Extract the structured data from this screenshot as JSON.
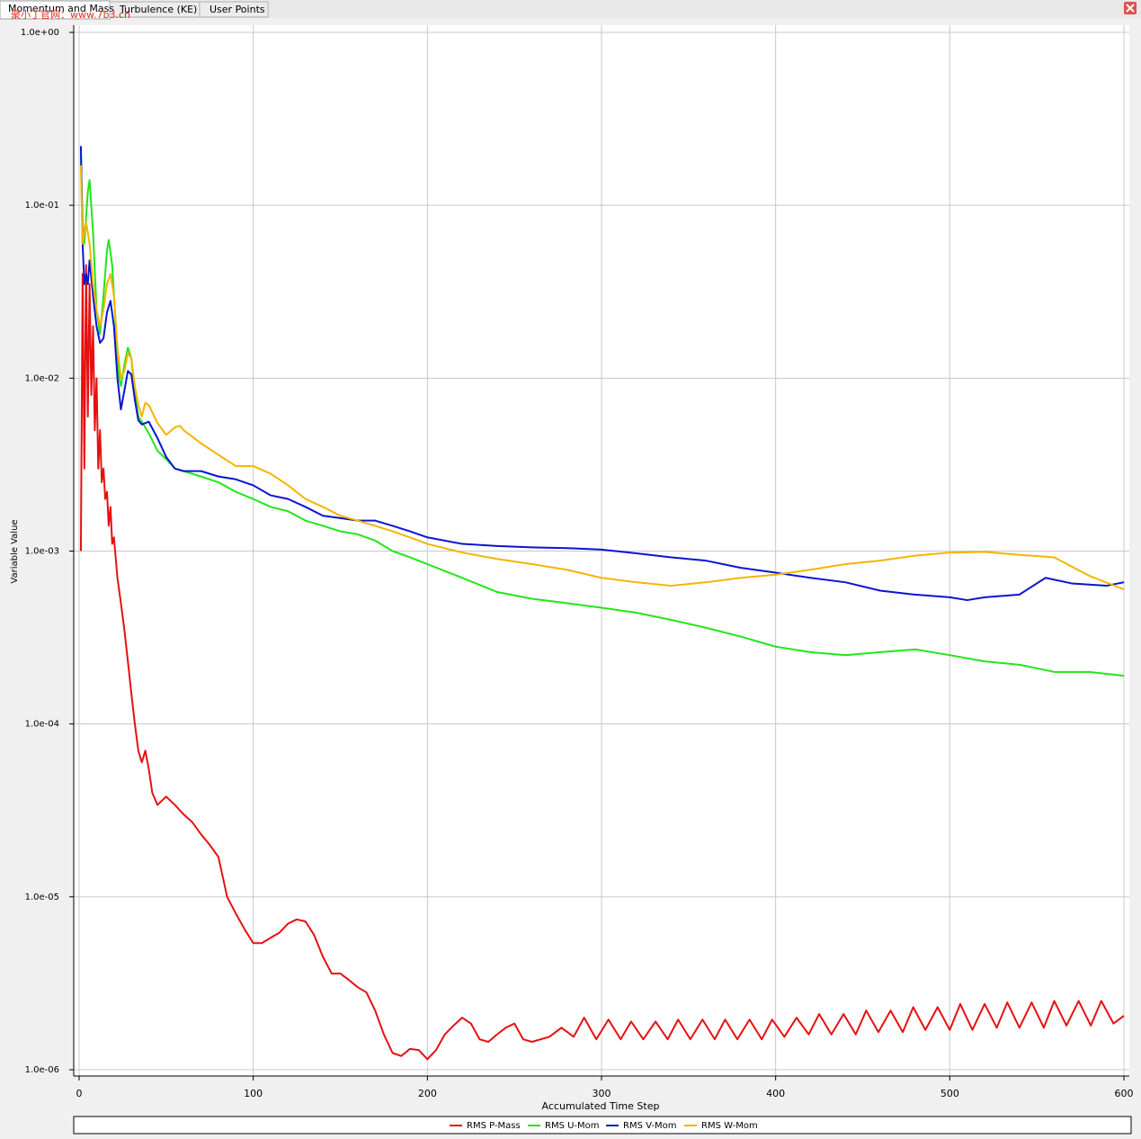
{
  "tabs": [
    "Momentum and Mass",
    "Turbulence (KE)",
    "User Points"
  ],
  "watermark": "聚小丁官网：www.7b3.cn",
  "chart_data": {
    "type": "line",
    "x_label": "Accumulated Time Step",
    "y_label": "Variable Value",
    "yscale": "log",
    "grid": true,
    "legend": "bottom",
    "xlim": [
      0,
      600
    ],
    "xticks": [
      0,
      100,
      200,
      300,
      400,
      500,
      600
    ],
    "ylim": [
      1e-06,
      1
    ],
    "yticks": [
      {
        "value": 1e-06,
        "label": "1.0e-06"
      },
      {
        "value": 1e-05,
        "label": "1.0e-05"
      },
      {
        "value": 0.0001,
        "label": "1.0e-04"
      },
      {
        "value": 0.001,
        "label": "1.0e-03"
      },
      {
        "value": 0.01,
        "label": "1.0e-02"
      },
      {
        "value": 0.1,
        "label": "1.0e-01"
      },
      {
        "value": 1,
        "label": "1.0e+00"
      }
    ],
    "series": [
      {
        "name": "RMS P-Mass",
        "color": "#e61010",
        "x": [
          1,
          2,
          3,
          4,
          5,
          6,
          7,
          8,
          9,
          10,
          11,
          12,
          13,
          14,
          15,
          16,
          17,
          18,
          19,
          20,
          22,
          24,
          26,
          28,
          30,
          32,
          34,
          36,
          38,
          40,
          42,
          45,
          50,
          55,
          60,
          65,
          70,
          75,
          80,
          85,
          90,
          95,
          100,
          105,
          110,
          115,
          120,
          125,
          130,
          135,
          140,
          145,
          150,
          155,
          160,
          165,
          170,
          175,
          180,
          185,
          190,
          195,
          200,
          205,
          210,
          215,
          220,
          225,
          230,
          235,
          240,
          245,
          250,
          255,
          260,
          270,
          277,
          284,
          290,
          297,
          304,
          311,
          317,
          324,
          331,
          338,
          344,
          351,
          358,
          365,
          371,
          378,
          385,
          392,
          398,
          405,
          412,
          419,
          425,
          432,
          439,
          446,
          452,
          459,
          466,
          473,
          479,
          486,
          493,
          500,
          506,
          513,
          520,
          527,
          533,
          540,
          547,
          554,
          560,
          567,
          574,
          581,
          587,
          594,
          600
        ],
        "values": [
          0.001,
          0.04,
          0.003,
          0.045,
          0.006,
          0.035,
          0.008,
          0.02,
          0.005,
          0.01,
          0.003,
          0.005,
          0.0025,
          0.003,
          0.002,
          0.0022,
          0.0014,
          0.0018,
          0.0011,
          0.0012,
          0.0007,
          0.0005,
          0.00035,
          0.00023,
          0.00015,
          0.0001,
          7e-05,
          6e-05,
          7e-05,
          5.5e-05,
          4e-05,
          3.4e-05,
          3.8e-05,
          3.4e-05,
          3e-05,
          2.7e-05,
          2.3e-05,
          2e-05,
          1.7e-05,
          1e-05,
          8e-06,
          6.5e-06,
          5.4e-06,
          5.4e-06,
          5.8e-06,
          6.2e-06,
          7e-06,
          7.4e-06,
          7.2e-06,
          6e-06,
          4.5e-06,
          3.6e-06,
          3.6e-06,
          3.3e-06,
          3e-06,
          2.8e-06,
          2.2e-06,
          1.6e-06,
          1.25e-06,
          1.2e-06,
          1.32e-06,
          1.3e-06,
          1.15e-06,
          1.3e-06,
          1.6e-06,
          1.8e-06,
          2e-06,
          1.85e-06,
          1.5e-06,
          1.45e-06,
          1.6e-06,
          1.75e-06,
          1.85e-06,
          1.5e-06,
          1.45e-06,
          1.55e-06,
          1.75e-06,
          1.55e-06,
          2e-06,
          1.5e-06,
          1.95e-06,
          1.5e-06,
          1.9e-06,
          1.5e-06,
          1.9e-06,
          1.5e-06,
          1.95e-06,
          1.5e-06,
          1.95e-06,
          1.5e-06,
          1.95e-06,
          1.5e-06,
          1.95e-06,
          1.5e-06,
          1.95e-06,
          1.55e-06,
          2e-06,
          1.6e-06,
          2.1e-06,
          1.6e-06,
          2.1e-06,
          1.6e-06,
          2.2e-06,
          1.65e-06,
          2.2e-06,
          1.65e-06,
          2.3e-06,
          1.7e-06,
          2.3e-06,
          1.7e-06,
          2.4e-06,
          1.7e-06,
          2.4e-06,
          1.75e-06,
          2.45e-06,
          1.75e-06,
          2.45e-06,
          1.75e-06,
          2.5e-06,
          1.8e-06,
          2.5e-06,
          1.8e-06,
          2.5e-06,
          1.85e-06,
          2.05e-06
        ]
      },
      {
        "name": "RMS U-Mom",
        "color": "#22e61a",
        "x": [
          1,
          2,
          3,
          5,
          6,
          8,
          10,
          12,
          14,
          16,
          17,
          19,
          21,
          23,
          24,
          26,
          28,
          30,
          32,
          34,
          38,
          40,
          45,
          50,
          55,
          60,
          70,
          80,
          90,
          100,
          110,
          120,
          130,
          140,
          150,
          160,
          170,
          180,
          190,
          200,
          220,
          240,
          260,
          280,
          300,
          320,
          340,
          360,
          380,
          400,
          420,
          440,
          460,
          480,
          500,
          520,
          540,
          560,
          580,
          600
        ],
        "values": [
          0.2,
          0.08,
          0.06,
          0.12,
          0.14,
          0.07,
          0.025,
          0.018,
          0.03,
          0.055,
          0.063,
          0.045,
          0.02,
          0.01,
          0.009,
          0.012,
          0.015,
          0.013,
          0.008,
          0.006,
          0.0052,
          0.0048,
          0.0038,
          0.0034,
          0.003,
          0.0029,
          0.0027,
          0.0025,
          0.0022,
          0.002,
          0.0018,
          0.0017,
          0.0015,
          0.0014,
          0.0013,
          0.00125,
          0.00115,
          0.001,
          0.00092,
          0.00084,
          0.0007,
          0.00058,
          0.00053,
          0.0005,
          0.00047,
          0.00044,
          0.0004,
          0.00036,
          0.00032,
          0.00028,
          0.00026,
          0.00025,
          0.00026,
          0.00027,
          0.00025,
          0.00023,
          0.00022,
          0.0002,
          0.0002,
          0.00019
        ]
      },
      {
        "name": "RMS V-Mom",
        "color": "#0a14d2",
        "x": [
          1,
          2,
          3,
          4,
          5,
          6,
          8,
          10,
          12,
          14,
          16,
          18,
          20,
          22,
          24,
          26,
          28,
          30,
          32,
          34,
          36,
          40,
          45,
          50,
          55,
          60,
          70,
          80,
          90,
          100,
          110,
          120,
          130,
          140,
          150,
          160,
          170,
          180,
          190,
          200,
          220,
          240,
          260,
          280,
          300,
          320,
          340,
          360,
          380,
          400,
          420,
          440,
          460,
          480,
          500,
          510,
          520,
          540,
          555,
          570,
          590,
          600
        ],
        "values": [
          0.22,
          0.06,
          0.035,
          0.04,
          0.035,
          0.048,
          0.03,
          0.02,
          0.016,
          0.017,
          0.024,
          0.028,
          0.02,
          0.01,
          0.0066,
          0.0085,
          0.011,
          0.0105,
          0.0075,
          0.0057,
          0.0054,
          0.0056,
          0.0045,
          0.0035,
          0.003,
          0.0029,
          0.0029,
          0.0027,
          0.0026,
          0.0024,
          0.0021,
          0.002,
          0.0018,
          0.0016,
          0.00155,
          0.0015,
          0.0015,
          0.0014,
          0.0013,
          0.0012,
          0.0011,
          0.00107,
          0.00105,
          0.00104,
          0.00102,
          0.00097,
          0.00092,
          0.00088,
          0.0008,
          0.00075,
          0.0007,
          0.00066,
          0.00059,
          0.00056,
          0.00054,
          0.00052,
          0.00054,
          0.00056,
          0.0007,
          0.00065,
          0.00063,
          0.00066
        ]
      },
      {
        "name": "RMS W-Mom",
        "color": "#f5b400",
        "x": [
          1,
          2,
          3,
          4,
          6,
          8,
          10,
          12,
          14,
          16,
          18,
          20,
          22,
          24,
          26,
          28,
          30,
          32,
          34,
          36,
          38,
          40,
          45,
          50,
          55,
          58,
          60,
          70,
          80,
          90,
          100,
          110,
          120,
          130,
          140,
          150,
          160,
          170,
          180,
          190,
          200,
          220,
          240,
          260,
          280,
          300,
          320,
          340,
          360,
          380,
          400,
          420,
          440,
          460,
          480,
          500,
          520,
          540,
          560,
          580,
          600
        ],
        "values": [
          0.17,
          0.06,
          0.07,
          0.08,
          0.06,
          0.035,
          0.025,
          0.02,
          0.025,
          0.035,
          0.04,
          0.03,
          0.015,
          0.01,
          0.011,
          0.014,
          0.013,
          0.009,
          0.007,
          0.006,
          0.0072,
          0.007,
          0.0055,
          0.0047,
          0.0052,
          0.0053,
          0.005,
          0.0042,
          0.0036,
          0.0031,
          0.0031,
          0.0028,
          0.0024,
          0.002,
          0.0018,
          0.0016,
          0.0015,
          0.0014,
          0.0013,
          0.0012,
          0.0011,
          0.00098,
          0.0009,
          0.00084,
          0.00078,
          0.0007,
          0.00066,
          0.00063,
          0.00066,
          0.0007,
          0.00073,
          0.00078,
          0.00084,
          0.00088,
          0.00094,
          0.00098,
          0.00099,
          0.00095,
          0.00092,
          0.00072,
          0.0006
        ]
      }
    ]
  }
}
